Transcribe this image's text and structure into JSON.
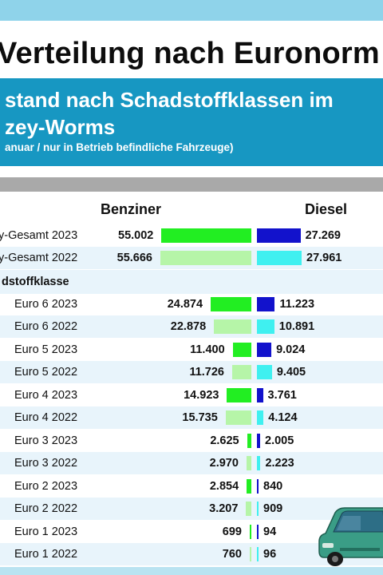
{
  "header": {
    "title": "Verteilung nach Euronorm",
    "subtitle_line1": "stand nach Schadstoffklassen im",
    "subtitle_line2": "zey-Worms",
    "note": "anuar / nur in Betrieb befindliche Fahrzeuge)"
  },
  "columns": {
    "benzin": "Benziner",
    "diesel": "Diesel"
  },
  "section_label": "dstoffklasse",
  "colors": {
    "benzin_2023": "#22ee22",
    "benzin_2022": "#b6f5a8",
    "diesel_2023": "#1212cc",
    "diesel_2022": "#3ff0f0"
  },
  "chart_data": {
    "type": "bar",
    "orientation": "horizontal",
    "series": [
      {
        "name": "Benziner",
        "values": [
          55002,
          55666,
          24874,
          22878,
          11400,
          11726,
          14923,
          15735,
          2625,
          2970,
          2854,
          3207,
          699,
          760
        ]
      },
      {
        "name": "Diesel",
        "values": [
          27269,
          27961,
          11223,
          10891,
          9024,
          9405,
          3761,
          4124,
          2005,
          2223,
          840,
          909,
          94,
          96
        ]
      }
    ],
    "categories": [
      "y-Gesamt 2023",
      "y-Gesamt 2022",
      "Euro 6 2023",
      "Euro 6 2022",
      "Euro 5 2023",
      "Euro 5 2022",
      "Euro 4 2023",
      "Euro 4 2022",
      "Euro 3 2023",
      "Euro 3 2022",
      "Euro 2 2023",
      "Euro 2 2022",
      "Euro 1 2023",
      "Euro 1 2022"
    ],
    "rows": [
      {
        "label": "y-Gesamt 2023",
        "benzin": 55002,
        "benzin_label": "55.002",
        "diesel": 27269,
        "diesel_label": "27.269",
        "year": "2023"
      },
      {
        "label": "y-Gesamt 2022",
        "benzin": 55666,
        "benzin_label": "55.666",
        "diesel": 27961,
        "diesel_label": "27.961",
        "year": "2022"
      },
      {
        "label": "Euro 6 2023",
        "benzin": 24874,
        "benzin_label": "24.874",
        "diesel": 11223,
        "diesel_label": "11.223",
        "year": "2023"
      },
      {
        "label": "Euro 6 2022",
        "benzin": 22878,
        "benzin_label": "22.878",
        "diesel": 10891,
        "diesel_label": "10.891",
        "year": "2022"
      },
      {
        "label": "Euro 5 2023",
        "benzin": 11400,
        "benzin_label": "11.400",
        "diesel": 9024,
        "diesel_label": "9.024",
        "year": "2023"
      },
      {
        "label": "Euro 5 2022",
        "benzin": 11726,
        "benzin_label": "11.726",
        "diesel": 9405,
        "diesel_label": "9.405",
        "year": "2022"
      },
      {
        "label": "Euro 4 2023",
        "benzin": 14923,
        "benzin_label": "14.923",
        "diesel": 3761,
        "diesel_label": "3.761",
        "year": "2023"
      },
      {
        "label": "Euro 4 2022",
        "benzin": 15735,
        "benzin_label": "15.735",
        "diesel": 4124,
        "diesel_label": "4.124",
        "year": "2022"
      },
      {
        "label": "Euro 3 2023",
        "benzin": 2625,
        "benzin_label": "2.625",
        "diesel": 2005,
        "diesel_label": "2.005",
        "year": "2023"
      },
      {
        "label": "Euro 3 2022",
        "benzin": 2970,
        "benzin_label": "2.970",
        "diesel": 2223,
        "diesel_label": "2.223",
        "year": "2022"
      },
      {
        "label": "Euro 2 2023",
        "benzin": 2854,
        "benzin_label": "2.854",
        "diesel": 840,
        "diesel_label": "840",
        "year": "2023"
      },
      {
        "label": "Euro 2 2022",
        "benzin": 3207,
        "benzin_label": "3.207",
        "diesel": 909,
        "diesel_label": "909",
        "year": "2022"
      },
      {
        "label": "Euro 1 2023",
        "benzin": 699,
        "benzin_label": "699",
        "diesel": 94,
        "diesel_label": "94",
        "year": "2023"
      },
      {
        "label": "Euro 1 2022",
        "benzin": 760,
        "benzin_label": "760",
        "diesel": 96,
        "diesel_label": "96",
        "year": "2022"
      }
    ]
  }
}
